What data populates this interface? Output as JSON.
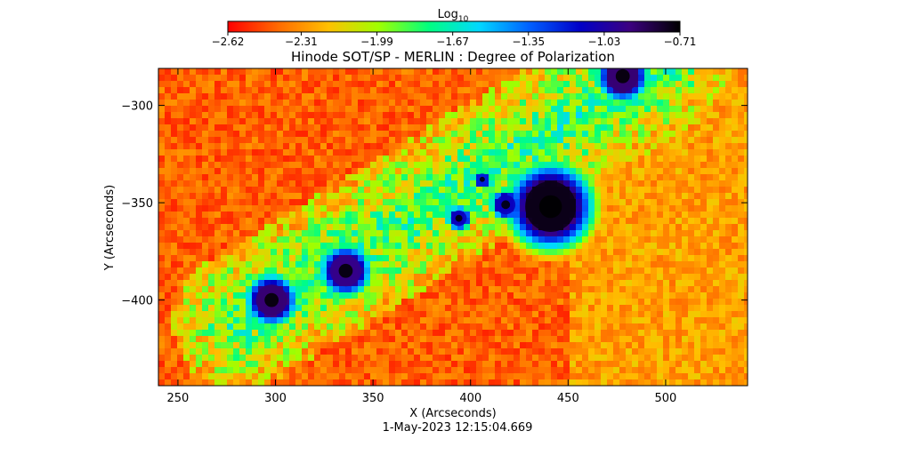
{
  "chart_data": {
    "type": "heatmap",
    "title": "Hinode SOT/SP - MERLIN : Degree of Polarization",
    "xlabel": "X (Arcseconds)",
    "ylabel": "Y (Arcseconds)",
    "timestamp": "1-May-2023 12:15:04.669",
    "xlim": [
      240,
      542
    ],
    "ylim": [
      -444,
      -281
    ],
    "x_ticks": [
      250,
      300,
      350,
      400,
      450,
      500
    ],
    "y_ticks": [
      -300,
      -350,
      -400
    ],
    "colorbar": {
      "label_main": "Log",
      "label_sub": "10",
      "range": [
        -2.62,
        -0.71
      ],
      "tick_values": [
        -2.62,
        -2.31,
        -1.99,
        -1.67,
        -1.35,
        -1.03,
        -0.71
      ],
      "tick_labels": [
        "−2.62",
        "−2.31",
        "−1.99",
        "−1.67",
        "−1.35",
        "−1.03",
        "−0.71"
      ],
      "colors": [
        "#ff0000",
        "#ff6a00",
        "#ffc000",
        "#a0ff00",
        "#00ff80",
        "#00d8ff",
        "#0060ff",
        "#0000c8",
        "#3c0080",
        "#000000"
      ]
    },
    "features": [
      {
        "label": "sunspot",
        "x": 298,
        "y": -400,
        "r": 8,
        "value": -0.9
      },
      {
        "label": "sunspot",
        "x": 336,
        "y": -385,
        "r": 8,
        "value": -0.95
      },
      {
        "label": "sunspot",
        "x": 418,
        "y": -351,
        "r": 5,
        "value": -1.1
      },
      {
        "label": "sunspot",
        "x": 394,
        "y": -358,
        "r": 4,
        "value": -1.1
      },
      {
        "label": "sunspot",
        "x": 406,
        "y": -338,
        "r": 3,
        "value": -1.2
      },
      {
        "label": "sunspot",
        "x": 441,
        "y": -352,
        "r": 13,
        "value": -0.75
      },
      {
        "label": "sunspot",
        "x": 478,
        "y": -285,
        "r": 8,
        "value": -0.9
      }
    ],
    "background_value": -2.55
  }
}
